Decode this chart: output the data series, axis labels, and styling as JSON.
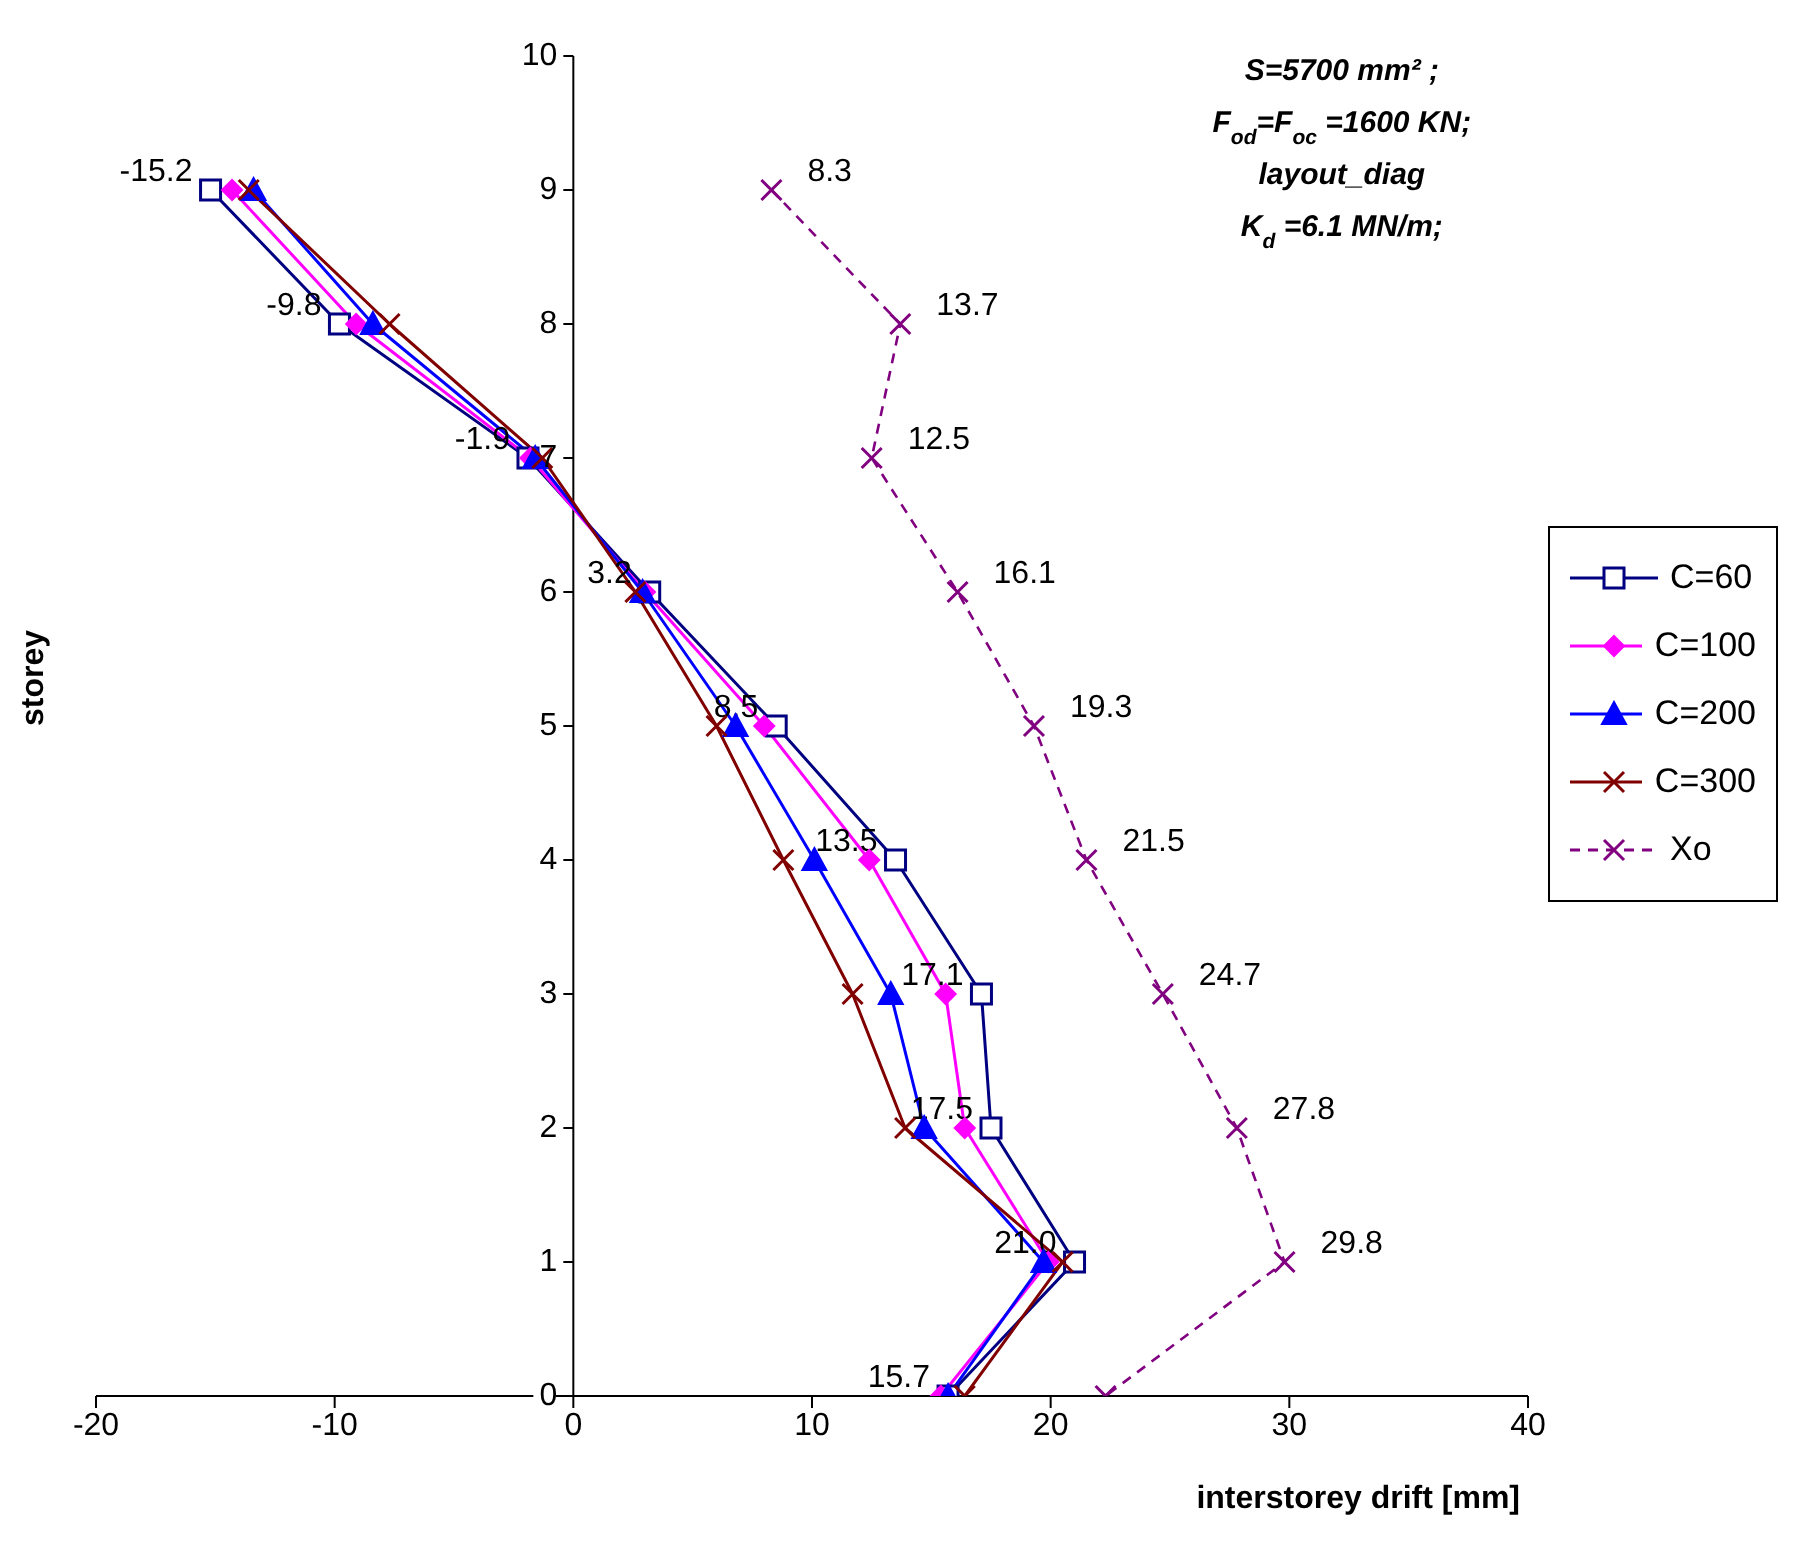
{
  "chart_data": {
    "type": "line",
    "orientation": "horizontal",
    "xlabel": "interstorey drift [mm]",
    "ylabel": "storey",
    "annotations": [
      "S=5700 mm² ;",
      "F$_{od}$=F$_{oc}$ =1600 KN;",
      "layout_diag",
      "K$_{d}$ =6.1 MN/m;"
    ],
    "categories": [
      "10",
      "9",
      "8",
      "7",
      "6",
      "5",
      "4",
      "3",
      "2",
      "1",
      "0"
    ],
    "xlim": [
      -20,
      40
    ],
    "xticks": [
      -20,
      -10,
      0,
      10,
      20,
      30,
      40
    ],
    "grid": false,
    "legend": "right",
    "series": [
      {
        "name": "C=60",
        "color": "#000080",
        "marker": "square",
        "line_style": "solid",
        "values": [
          null,
          -15.2,
          -9.8,
          -1.9,
          3.2,
          8.5,
          13.5,
          17.1,
          17.5,
          21.0,
          15.7
        ],
        "value_labels": [
          null,
          "-15.2",
          "-9.8",
          "-1.9",
          "3.2",
          "8.5",
          "13.5",
          "17.1",
          "17.5",
          "21.0",
          "15.7"
        ]
      },
      {
        "name": "C=100",
        "color": "#ff00ff",
        "marker": "diamond",
        "line_style": "solid",
        "values": [
          null,
          -14.3,
          -9.1,
          -1.8,
          3.0,
          8.0,
          12.4,
          15.6,
          16.4,
          19.9,
          15.4
        ]
      },
      {
        "name": "C=200",
        "color": "#0000ff",
        "marker": "triangle",
        "line_style": "solid",
        "values": [
          null,
          -13.4,
          -8.4,
          -1.6,
          2.9,
          6.8,
          10.1,
          13.3,
          14.7,
          19.7,
          15.7
        ]
      },
      {
        "name": "C=300",
        "color": "#800000",
        "marker": "cross",
        "line_style": "solid",
        "values": [
          null,
          -13.6,
          -7.7,
          -1.3,
          2.6,
          6.0,
          8.8,
          11.7,
          13.9,
          20.5,
          16.4
        ]
      },
      {
        "name": "Xo",
        "color": "#800080",
        "marker": "cross",
        "line_style": "dashed",
        "values": [
          null,
          8.3,
          13.7,
          12.5,
          16.1,
          19.3,
          21.5,
          24.7,
          27.8,
          29.8,
          22.3
        ],
        "value_labels": [
          null,
          "8.3",
          "13.7",
          "12.5",
          "16.1",
          "19.3",
          "21.5",
          "24.7",
          "27.8",
          "29.8",
          null
        ]
      }
    ]
  }
}
